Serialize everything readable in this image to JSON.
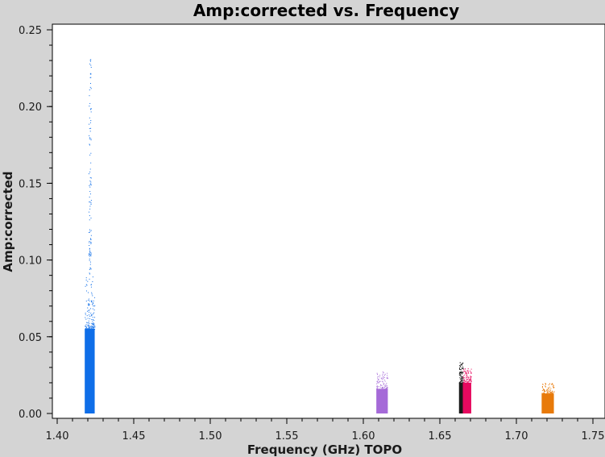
{
  "chart_data": {
    "type": "scatter",
    "title": "Amp:corrected vs. Frequency",
    "xlabel": "Frequency (GHz) TOPO",
    "ylabel": "Amp:corrected",
    "xlim": [
      1.4,
      1.75
    ],
    "ylim": [
      0.0,
      0.25
    ],
    "x_ticks": [
      "1.40",
      "1.45",
      "1.50",
      "1.55",
      "1.60",
      "1.65",
      "1.70",
      "1.75"
    ],
    "y_ticks": [
      "0.00",
      "0.05",
      "0.10",
      "0.15",
      "0.20",
      "0.25"
    ],
    "grid": false,
    "series": [
      {
        "color": "#0f6ee8",
        "x_range": [
          1.418,
          1.4245
        ],
        "y_dense_max": 0.055,
        "y_peak": 0.232,
        "outliers_to": 0.232
      },
      {
        "color": "#a56ad8",
        "x_range": [
          1.6085,
          1.616
        ],
        "y_dense_max": 0.016,
        "y_peak": 0.028
      },
      {
        "color": "#1a1a1a",
        "x_range": [
          1.6625,
          1.665
        ],
        "y_dense_max": 0.02,
        "y_peak": 0.034
      },
      {
        "color": "#e6095f",
        "x_range": [
          1.665,
          1.6705
        ],
        "y_dense_max": 0.02,
        "y_peak": 0.03
      },
      {
        "color": "#e87a0a",
        "x_range": [
          1.7165,
          1.7245
        ],
        "y_dense_max": 0.013,
        "y_peak": 0.02
      }
    ]
  }
}
